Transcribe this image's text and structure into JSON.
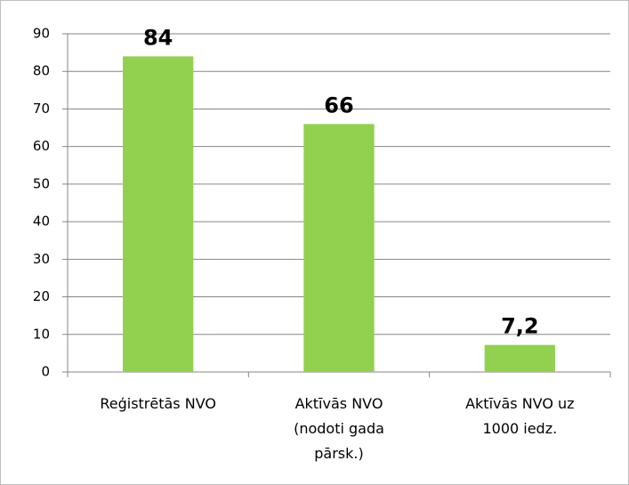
{
  "chart_data": {
    "type": "bar",
    "categories": [
      "Reģistrētās NVO",
      "Aktīvās NVO (nodoti gada pārsk.)",
      "Aktīvās NVO uz 1000 iedz."
    ],
    "values": [
      84,
      66,
      7.2
    ],
    "value_labels": [
      "84",
      "66",
      "7,2"
    ],
    "color": "#92d050",
    "ylim": [
      0,
      90
    ],
    "yticks": [
      0,
      10,
      20,
      30,
      40,
      50,
      60,
      70,
      80,
      90
    ],
    "grid": true
  }
}
